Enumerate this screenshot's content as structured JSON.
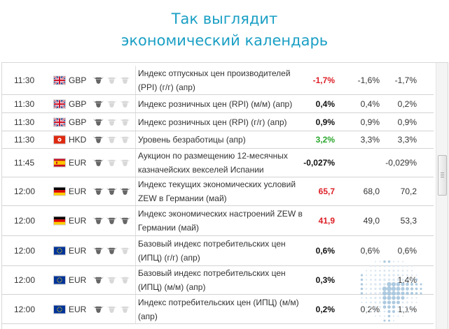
{
  "headline": {
    "line1": "Так выглядит",
    "line2": "экономический календарь"
  },
  "colors": {
    "accent": "#1a9fc4",
    "actual_negative": "#dd1f26",
    "actual_positive": "#2aa72d",
    "bull_active": "#666666",
    "bull_inactive": "#d8d8d8"
  },
  "calendar": {
    "rows": [
      {
        "time": "11:30",
        "flag_icon": "uk-flag-icon",
        "currency": "GBP",
        "importance": 1,
        "event": "Индекс отпускных цен производителей (PPI) (г/г) (апр)",
        "actual": "-1,7%",
        "actual_color": "red",
        "forecast": "-1,6%",
        "previous": "-1,7%"
      },
      {
        "time": "11:30",
        "flag_icon": "uk-flag-icon",
        "currency": "GBP",
        "importance": 1,
        "event": "Индекс розничных цен (RPI) (м/м) (апр)",
        "actual": "0,4%",
        "actual_color": "black",
        "forecast": "0,4%",
        "previous": "0,2%"
      },
      {
        "time": "11:30",
        "flag_icon": "uk-flag-icon",
        "currency": "GBP",
        "importance": 1,
        "event": "Индекс розничных цен (RPI) (г/г) (апр)",
        "actual": "0,9%",
        "actual_color": "black",
        "forecast": "0,9%",
        "previous": "0,9%"
      },
      {
        "time": "11:30",
        "flag_icon": "hong-kong-flag-icon",
        "currency": "HKD",
        "importance": 1,
        "event": "Уровень безработицы (апр)",
        "actual": "3,2%",
        "actual_color": "green",
        "forecast": "3,3%",
        "previous": "3,3%"
      },
      {
        "time": "11:45",
        "flag_icon": "spain-flag-icon",
        "currency": "EUR",
        "importance": 1,
        "event": "Аукцион по размещению 12-месячных казначейских векселей Испании",
        "actual": "-0,027%",
        "actual_color": "black",
        "forecast": "",
        "previous": "-0,029%"
      },
      {
        "time": "12:00",
        "flag_icon": "germany-flag-icon",
        "currency": "EUR",
        "importance": 3,
        "event": "Индекс текущих экономических условий ZEW в Германии (май)",
        "actual": "65,7",
        "actual_color": "red",
        "forecast": "68,0",
        "previous": "70,2"
      },
      {
        "time": "12:00",
        "flag_icon": "germany-flag-icon",
        "currency": "EUR",
        "importance": 3,
        "event": "Индекс экономических настроений ZEW в Германии (май)",
        "actual": "41,9",
        "actual_color": "red",
        "forecast": "49,0",
        "previous": "53,3"
      },
      {
        "time": "12:00",
        "flag_icon": "eu-flag-icon",
        "currency": "EUR",
        "importance": 2,
        "event": "Базовый индекс потребительских цен (ИПЦ) (г/г) (апр)",
        "actual": "0,6%",
        "actual_color": "black",
        "forecast": "0,6%",
        "previous": "0,6%"
      },
      {
        "time": "12:00",
        "flag_icon": "eu-flag-icon",
        "currency": "EUR",
        "importance": 1,
        "event": "Базовый индекс потребительских цен (ИПЦ) (м/м) (апр)",
        "actual": "0,3%",
        "actual_color": "black",
        "forecast": "",
        "previous": "1,4%"
      },
      {
        "time": "12:00",
        "flag_icon": "eu-flag-icon",
        "currency": "EUR",
        "importance": 1,
        "event": "Индекс потребительских цен (ИПЦ) (м/м) (апр)",
        "actual": "0,2%",
        "actual_color": "black",
        "forecast": "0,2%",
        "previous": "1,1%"
      }
    ]
  }
}
